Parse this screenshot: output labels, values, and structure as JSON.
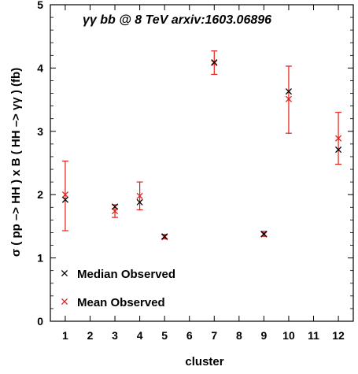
{
  "chart_data": {
    "type": "scatter",
    "title": "γγ bb @ 8 TeV arxiv:1603.06896",
    "xlabel": "cluster",
    "ylabel": "σ ( pp –> HH ) x B ( HH –> γγ      ) (fb)",
    "xlim": [
      0.4,
      12.6
    ],
    "ylim": [
      0,
      5
    ],
    "x_ticks": [
      1,
      2,
      3,
      4,
      5,
      6,
      7,
      8,
      9,
      10,
      11,
      12
    ],
    "y_ticks": [
      0,
      1,
      2,
      3,
      4,
      5
    ],
    "grid": false,
    "legend_position": "bottom-left",
    "series": [
      {
        "name": "Median Observed",
        "color": "#000000",
        "marker": "x",
        "x": [
          1,
          3,
          4,
          5,
          7,
          9,
          10,
          12
        ],
        "y": [
          1.92,
          1.81,
          1.88,
          1.34,
          4.09,
          1.38,
          3.63,
          2.71
        ]
      },
      {
        "name": "Mean Observed",
        "color": "#e0201b",
        "marker": "x",
        "x": [
          1,
          3,
          4,
          5,
          7,
          9,
          10,
          12
        ],
        "y": [
          2.0,
          1.74,
          1.98,
          1.33,
          4.08,
          1.37,
          3.51,
          2.89
        ],
        "err_low": [
          1.43,
          1.64,
          1.76,
          1.3,
          3.9,
          1.34,
          2.97,
          2.48
        ],
        "err_high": [
          2.53,
          1.84,
          2.2,
          1.37,
          4.27,
          1.42,
          4.03,
          3.3
        ]
      }
    ]
  }
}
